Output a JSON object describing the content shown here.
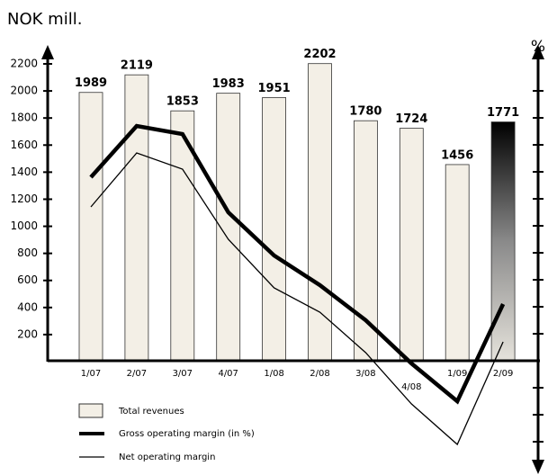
{
  "chart_data": {
    "type": "bar",
    "title": "NOK mill.",
    "y2_label": "%",
    "categories": [
      "1/07",
      "2/07",
      "3/07",
      "4/07",
      "1/08",
      "2/08",
      "3/08",
      "4/08",
      "1/09",
      "2/09"
    ],
    "series": [
      {
        "name": "Total revenues",
        "type": "bar",
        "color": "#f3efe6",
        "values": [
          1989,
          2119,
          1853,
          1983,
          1951,
          2202,
          1780,
          1724,
          1456,
          1771
        ]
      },
      {
        "name": "Gross operating margin (in %)",
        "type": "line",
        "axis": "y2",
        "color": "#000000",
        "values": [
          6.8,
          8.7,
          8.4,
          5.5,
          3.9,
          2.8,
          1.5,
          -0.1,
          -1.5,
          2.1
        ]
      },
      {
        "name": "Net operating margin",
        "type": "line",
        "axis": "y2",
        "color": "#000000",
        "values": [
          5.7,
          7.7,
          7.1,
          4.5,
          2.7,
          1.8,
          0.3,
          -1.6,
          -3.1,
          0.7
        ]
      }
    ],
    "ylim": [
      0,
      2200
    ],
    "yticks": [
      200,
      400,
      600,
      800,
      1000,
      1200,
      1400,
      1600,
      1800,
      2000,
      2200
    ],
    "y2lim": [
      -4,
      11
    ],
    "y2ticks": [
      -3,
      -2,
      -1,
      1,
      2,
      3,
      4,
      5,
      6,
      7,
      8,
      9,
      10
    ]
  }
}
